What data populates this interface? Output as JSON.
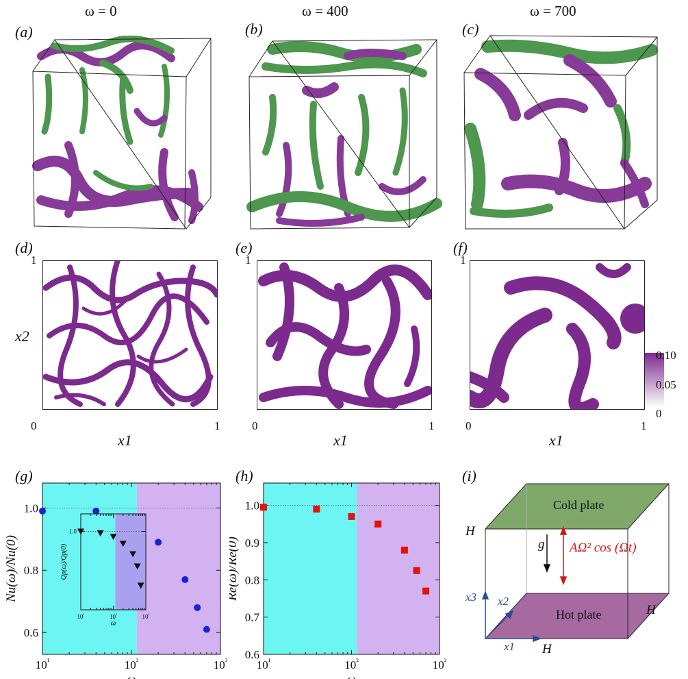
{
  "titles": {
    "a": "ω = 0",
    "b": "ω = 400",
    "c": "ω = 700"
  },
  "panel_labels": {
    "a": "(a)",
    "b": "(b)",
    "c": "(c)",
    "d": "(d)",
    "e": "(e)",
    "f": "(f)",
    "g": "(g)",
    "h": "(h)",
    "i": "(i)"
  },
  "slices": {
    "x_label": "x1",
    "y_label": "x2",
    "tick_min": "0",
    "tick_max": "1",
    "colorbar_ticks": [
      "0.10",
      "0.05",
      "0"
    ]
  },
  "colors": {
    "purple": "#7d2a8f",
    "green": "#3f8f3f",
    "cyan_region": "#6cf5f2",
    "lavender_region": "#d3b2f2",
    "nu_marker": "#1a23d4",
    "re_marker": "#e3120b",
    "cold_plate": "#7fa86a",
    "hot_plate": "#a66aa0",
    "axis_blue": "#2b4a9a",
    "accel_red": "#d41515"
  },
  "chart_data": [
    {
      "type": "scatter",
      "panel": "g",
      "xlabel": "ω",
      "ylabel": "Nu(ω)/Nu(0)",
      "xscale": "log",
      "xlim": [
        10,
        1000
      ],
      "ylim": [
        0.53,
        1.08
      ],
      "yticks": [
        "0.6",
        "0.8",
        "1.0"
      ],
      "xticks": [
        "10¹",
        "10²",
        "10³"
      ],
      "reference_line": 1.0,
      "regions": [
        {
          "from": 10,
          "to": 115,
          "color": "cyan"
        },
        {
          "from": 115,
          "to": 1000,
          "color": "lavender"
        }
      ],
      "x": [
        10,
        40,
        100,
        200,
        400,
        550,
        700
      ],
      "y": [
        0.99,
        0.99,
        0.96,
        0.89,
        0.77,
        0.68,
        0.61
      ],
      "inset": {
        "type": "scatter",
        "xscale": "log",
        "xlim": [
          10,
          1000
        ],
        "ylim": [
          0.55,
          1.1
        ],
        "ylabel": "Qp(ω)/Qp(0)",
        "xlabel": "ω",
        "xticks": [
          "10¹",
          "10²",
          "10³"
        ],
        "yticks": [
          "1.0"
        ],
        "reference_line": 1.0,
        "x": [
          10,
          40,
          100,
          200,
          400,
          550,
          700
        ],
        "y": [
          1.0,
          0.99,
          0.97,
          0.93,
          0.87,
          0.8,
          0.69
        ]
      }
    },
    {
      "type": "scatter",
      "panel": "h",
      "xlabel": "ω",
      "ylabel": "Re(ω)/Re(0)",
      "xscale": "log",
      "xlim": [
        10,
        1000
      ],
      "ylim": [
        0.6,
        1.06
      ],
      "yticks": [
        "0.6",
        "0.7",
        "0.8",
        "0.9",
        "1.0"
      ],
      "xticks": [
        "10¹",
        "10²",
        "10³"
      ],
      "reference_line": 1.0,
      "regions": [
        {
          "from": 10,
          "to": 115,
          "color": "cyan"
        },
        {
          "from": 115,
          "to": 1000,
          "color": "lavender"
        }
      ],
      "x": [
        10,
        40,
        100,
        200,
        400,
        550,
        700
      ],
      "y": [
        0.995,
        0.99,
        0.97,
        0.95,
        0.88,
        0.825,
        0.77
      ]
    }
  ],
  "schematic": {
    "cold_plate": "Cold plate",
    "hot_plate": "Hot plate",
    "g": "g",
    "accel": "AΩ² cos (Ωt)",
    "H_left": "H",
    "H_right": "H",
    "H_bottom": "H",
    "x1": "x1",
    "x2": "x2",
    "x3": "x3"
  }
}
